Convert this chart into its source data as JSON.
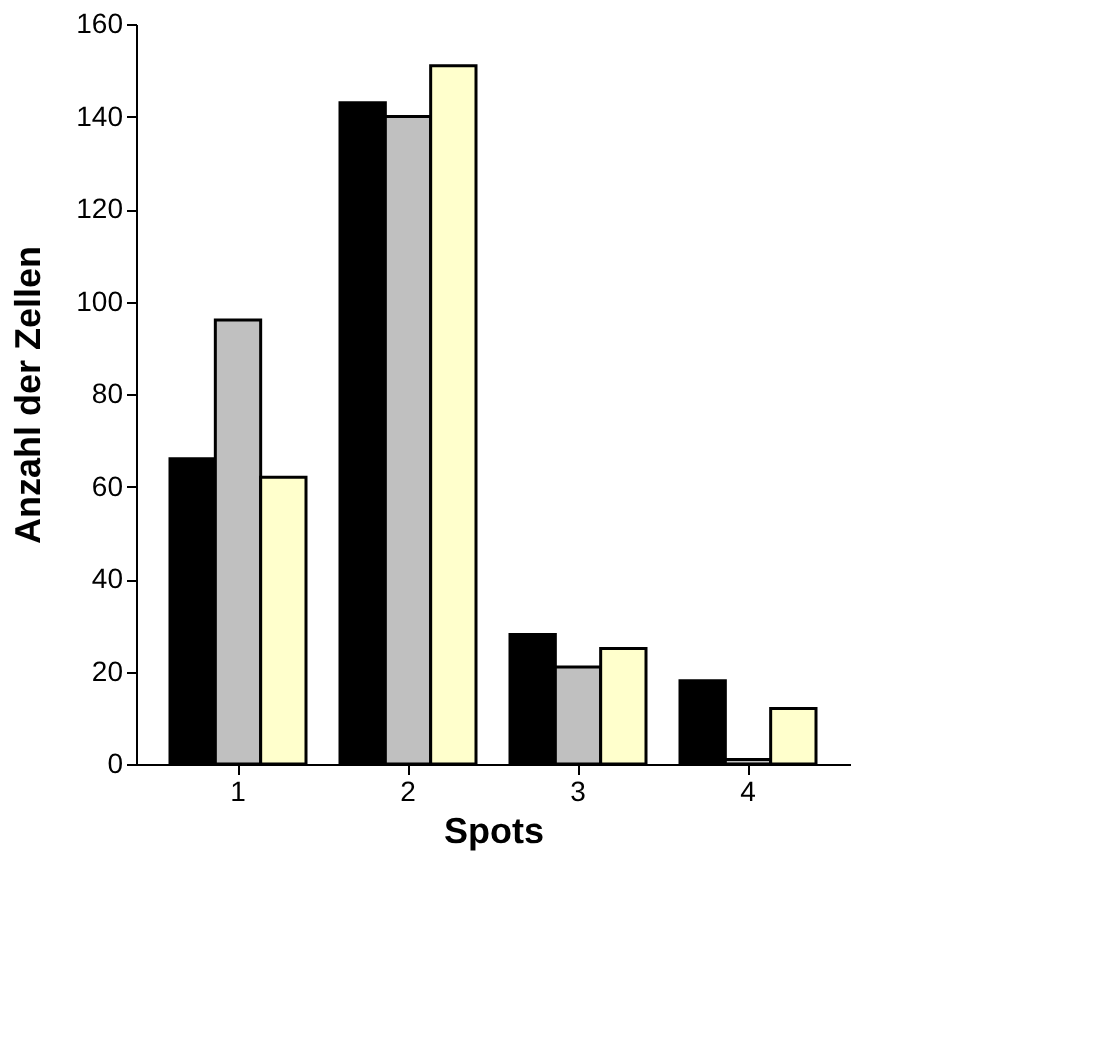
{
  "chart_data": {
    "type": "bar",
    "xlabel": "Spots",
    "ylabel": "Anzahl der Zellen",
    "categories": [
      "1",
      "2",
      "3",
      "4"
    ],
    "series": [
      {
        "color": "#000000",
        "values": [
          66,
          143,
          28,
          18
        ]
      },
      {
        "color": "#c0c0c0",
        "values": [
          96,
          140,
          21,
          1
        ]
      },
      {
        "color": "#ffffcc",
        "values": [
          62,
          151,
          25,
          12
        ]
      }
    ],
    "ylim": [
      0,
      160
    ],
    "yticks": [
      0,
      20,
      40,
      60,
      80,
      100,
      120,
      140,
      160
    ],
    "grid": false,
    "legend": false
  }
}
